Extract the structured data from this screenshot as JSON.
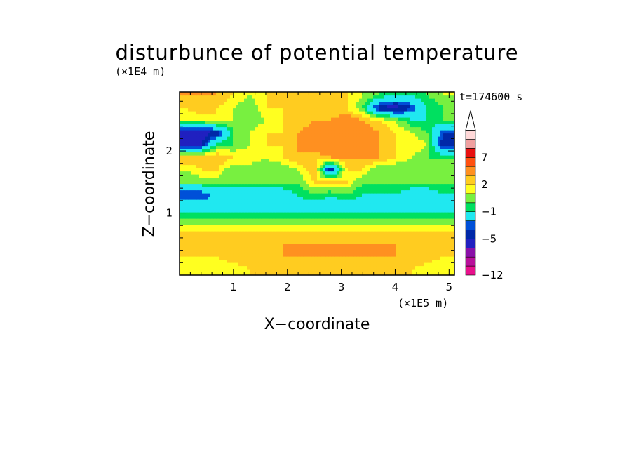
{
  "chart_data": {
    "type": "heatmap",
    "title": "disturbunce of potential temperature",
    "xlabel": "X−coordinate",
    "ylabel": "Z−coordinate",
    "x_scale_label": "(×1E5 m)",
    "y_scale_label": "(×1E4 m)",
    "time_label": "t=174600 s",
    "xlim": [
      0,
      5.1
    ],
    "ylim": [
      0,
      2.95
    ],
    "x_ticks": [
      {
        "value": 1,
        "label": "1"
      },
      {
        "value": 2,
        "label": "2"
      },
      {
        "value": 3,
        "label": "3"
      },
      {
        "value": 4,
        "label": "4"
      },
      {
        "value": 5,
        "label": "5"
      }
    ],
    "y_ticks": [
      {
        "value": 1,
        "label": "1"
      },
      {
        "value": 2,
        "label": "2"
      }
    ],
    "colorbar": {
      "levels": [
        -12,
        -11,
        -9,
        -7,
        -5,
        -4,
        -3,
        -1,
        0,
        1,
        2,
        3,
        5,
        7,
        9,
        11
      ],
      "colors": [
        "#e8108c",
        "#b8109a",
        "#8a10a8",
        "#2020c0",
        "#0028a8",
        "#0050d8",
        "#20e8f0",
        "#00e060",
        "#78f040",
        "#ffff20",
        "#ffcc20",
        "#ff9020",
        "#ff5010",
        "#e81010",
        "#f0a0a0",
        "#ffd8d8"
      ],
      "labeled": [
        {
          "value": -12,
          "label": "−12"
        },
        {
          "value": -5,
          "label": "−5"
        },
        {
          "value": -1,
          "label": "−1"
        },
        {
          "value": 2,
          "label": "2"
        },
        {
          "value": 7,
          "label": "7"
        }
      ],
      "extend": "max"
    },
    "field": {
      "x": [
        0.1,
        0.4,
        0.7,
        1.0,
        1.3,
        1.6,
        1.9,
        2.2,
        2.5,
        2.8,
        3.1,
        3.4,
        3.7,
        4.0,
        4.3,
        4.6,
        4.9
      ],
      "z": [
        0.1,
        0.3,
        0.5,
        0.7,
        0.9,
        1.1,
        1.3,
        1.5,
        1.7,
        1.9,
        2.1,
        2.3,
        2.5,
        2.7,
        2.9
      ],
      "values": [
        [
          1,
          1,
          1.5,
          1.5,
          2,
          2,
          2,
          2,
          2,
          2,
          2,
          2,
          2,
          2,
          2,
          1.5,
          1
        ],
        [
          2,
          2,
          2,
          2.5,
          2.5,
          2.5,
          3,
          3,
          3,
          3,
          3,
          3,
          3,
          3,
          3,
          2.5,
          2
        ],
        [
          2,
          2,
          2,
          2,
          2,
          2.5,
          3,
          3,
          3,
          3,
          3,
          3,
          3,
          3,
          2.5,
          2,
          2
        ],
        [
          2,
          2,
          2,
          2,
          2,
          2,
          2,
          2,
          2,
          2,
          2,
          2,
          2,
          2,
          2,
          2,
          2
        ],
        [
          0,
          0,
          0,
          0,
          0,
          0,
          0,
          0,
          0,
          0,
          0,
          0,
          0,
          0,
          0,
          0,
          0
        ],
        [
          -2,
          -2,
          -2,
          -2,
          -2,
          -2,
          -2,
          -2,
          -2,
          -2,
          -2,
          -2,
          -2,
          -2,
          -2,
          -2,
          -2
        ],
        [
          -4,
          -4,
          -2,
          -2,
          -3,
          -2,
          -2,
          -1,
          0,
          -1,
          0,
          -1,
          -1,
          -1,
          -2,
          -2,
          -1
        ],
        [
          0,
          0,
          0,
          0,
          0,
          0,
          0,
          0,
          2,
          3,
          2,
          0,
          0,
          0,
          0,
          0,
          0
        ],
        [
          1,
          2,
          2,
          0,
          0,
          0,
          0,
          1,
          3,
          -5,
          2,
          2,
          0,
          0,
          0,
          0,
          0
        ],
        [
          3,
          3,
          3,
          2,
          2,
          1,
          2,
          3,
          2,
          3,
          3,
          3,
          3,
          2,
          1,
          0,
          0
        ],
        [
          -5,
          -5,
          0,
          0,
          1,
          2,
          2,
          3,
          5,
          4,
          4,
          4,
          3,
          2,
          2,
          1,
          -5
        ],
        [
          -6,
          -6,
          -5,
          0,
          1,
          2,
          2,
          3,
          4,
          4,
          5,
          4,
          3,
          2,
          1,
          0,
          -4
        ],
        [
          1,
          1,
          2,
          1,
          0,
          1,
          2,
          2,
          3,
          3,
          4,
          3,
          2,
          1,
          -1,
          -1,
          0
        ],
        [
          2,
          3,
          2,
          1,
          0,
          2,
          2,
          2,
          2,
          2,
          2,
          0,
          -5,
          -6,
          -4,
          -1,
          0
        ],
        [
          3,
          3,
          3,
          2,
          1,
          2,
          3,
          2,
          2,
          2,
          2,
          1,
          0,
          -1,
          -1,
          0,
          1
        ]
      ]
    }
  }
}
